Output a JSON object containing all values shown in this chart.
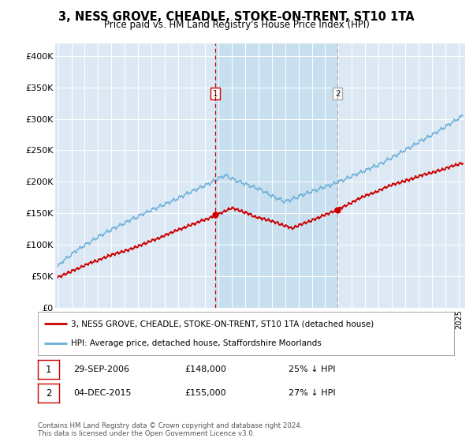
{
  "title": "3, NESS GROVE, CHEADLE, STOKE-ON-TRENT, ST10 1TA",
  "subtitle": "Price paid vs. HM Land Registry's House Price Index (HPI)",
  "bg_color": "#dce9f5",
  "shade_color": "#c8dff0",
  "hpi_color": "#6aaed6",
  "price_color": "#cc0000",
  "vline1_color": "#cc0000",
  "vline2_color": "#aaaaaa",
  "ylim": [
    0,
    420000
  ],
  "yticks": [
    0,
    50000,
    100000,
    150000,
    200000,
    250000,
    300000,
    350000,
    400000
  ],
  "ytick_labels": [
    "£0",
    "£50K",
    "£100K",
    "£150K",
    "£200K",
    "£250K",
    "£300K",
    "£350K",
    "£400K"
  ],
  "sale1_year": 2006.75,
  "sale1_price": 148000,
  "sale1_label": "1",
  "sale2_year": 2015.92,
  "sale2_price": 155000,
  "sale2_label": "2",
  "legend_line1": "3, NESS GROVE, CHEADLE, STOKE-ON-TRENT, ST10 1TA (detached house)",
  "legend_line2": "HPI: Average price, detached house, Staffordshire Moorlands",
  "table_row1_num": "1",
  "table_row1_date": "29-SEP-2006",
  "table_row1_price": "£148,000",
  "table_row1_pct": "25% ↓ HPI",
  "table_row2_num": "2",
  "table_row2_date": "04-DEC-2015",
  "table_row2_price": "£155,000",
  "table_row2_pct": "27% ↓ HPI",
  "footer": "Contains HM Land Registry data © Crown copyright and database right 2024.\nThis data is licensed under the Open Government Licence v3.0.",
  "xmin": 1994.8,
  "xmax": 2025.5
}
